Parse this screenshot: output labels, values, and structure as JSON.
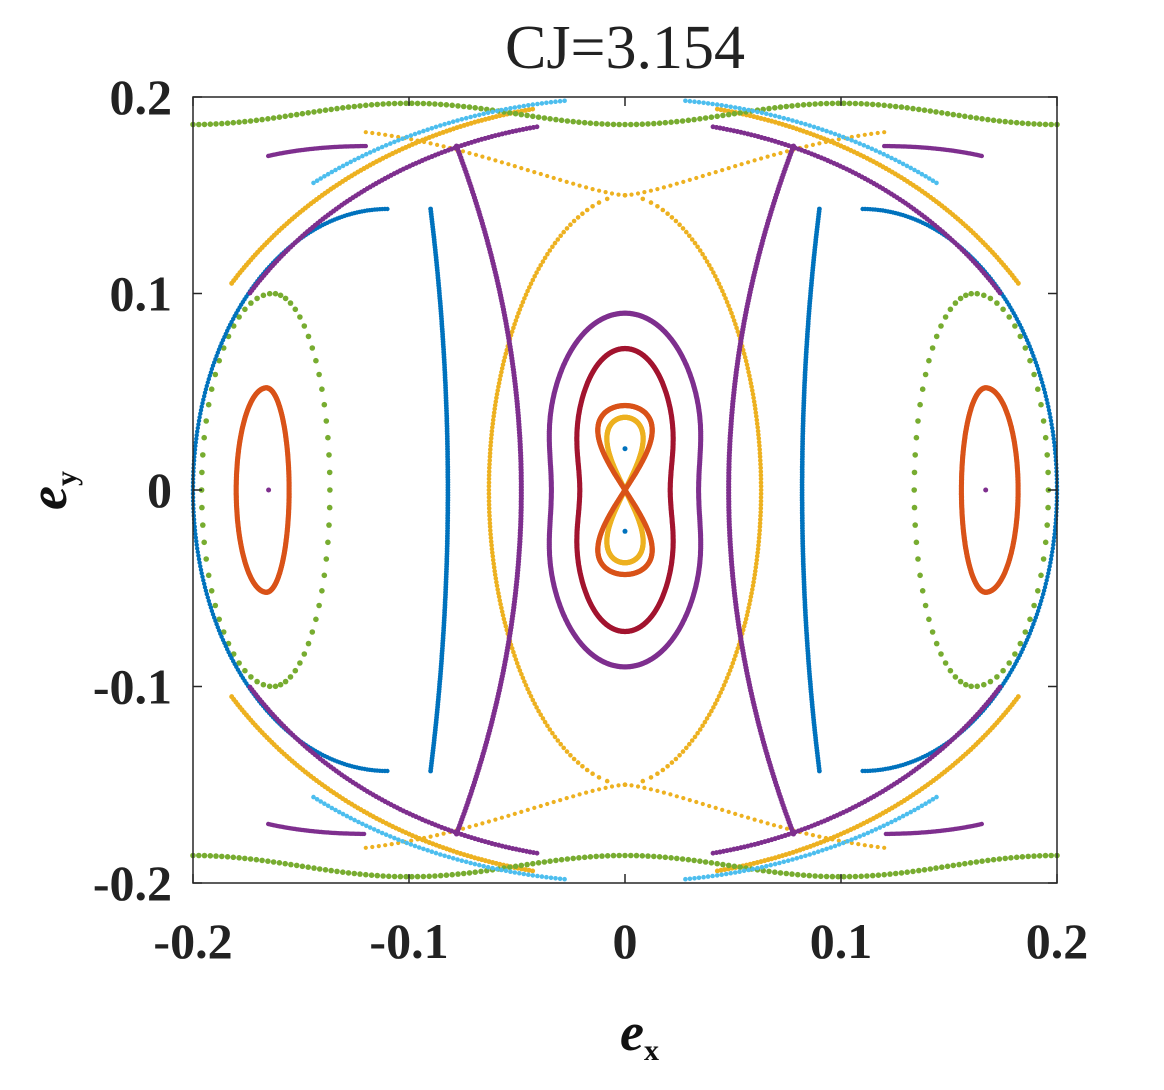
{
  "chart_data": {
    "type": "scatter",
    "title": "CJ=3.154",
    "xlabel": "e",
    "xlabel_sub": "x",
    "ylabel": "e",
    "ylabel_sub": "y",
    "xlim": [
      -0.2,
      0.2
    ],
    "ylim": [
      -0.2,
      0.2
    ],
    "xticks": [
      "-0.2",
      "-0.1",
      "0",
      "0.1",
      "0.2"
    ],
    "yticks": [
      "0.2",
      "0.1",
      "0",
      "-0.1",
      "-0.2"
    ],
    "grid": false,
    "colors": {
      "blue": "#0072BD",
      "orange": "#D95319",
      "yellow": "#EDB120",
      "purple": "#7E2F8E",
      "green": "#77AC30",
      "cyan": "#4DBEEE",
      "red": "#A2142F"
    },
    "series": [
      {
        "color": "#0072BD",
        "kind": "fixed_points",
        "points": [
          [
            0.0,
            0.021
          ],
          [
            0.0,
            -0.021
          ]
        ]
      },
      {
        "color": "#7E2F8E",
        "kind": "fixed_points",
        "points": [
          [
            -0.165,
            0.0
          ],
          [
            0.167,
            0.0
          ]
        ]
      },
      {
        "color": "#EDB120",
        "kind": "figure8",
        "x_amp": 0.006,
        "y_amp": 0.037
      },
      {
        "color": "#D95319",
        "kind": "figure8",
        "x_amp": 0.009,
        "y_amp": 0.043
      },
      {
        "color": "#A2142F",
        "kind": "peanut_loop",
        "x_amp": 0.028,
        "y_amp": 0.072,
        "waist": 0.3
      },
      {
        "color": "#7E2F8E",
        "kind": "peanut_loop",
        "x_amp": 0.042,
        "y_amp": 0.09,
        "waist": 0.22
      },
      {
        "color": "#EDB120",
        "kind": "separatrix",
        "x_max": 0.063,
        "y_cusp": 0.15
      },
      {
        "color": "#D95319",
        "kind": "island",
        "side": "left",
        "center": [
          -0.165,
          0.0
        ],
        "x_range": [
          -0.18,
          -0.152
        ],
        "y_amp": 0.052
      },
      {
        "color": "#D95319",
        "kind": "island",
        "side": "right",
        "center": [
          0.167,
          0.0
        ],
        "x_range": [
          0.152,
          0.182
        ],
        "y_amp": 0.052
      },
      {
        "color": "#77AC30",
        "kind": "island_dotted",
        "side": "left",
        "x_range": [
          -0.196,
          -0.13
        ],
        "y_amp": 0.1
      },
      {
        "color": "#77AC30",
        "kind": "island_dotted",
        "side": "right",
        "x_range": [
          0.127,
          0.196
        ],
        "y_amp": 0.1
      },
      {
        "color": "#7E2F8E",
        "kind": "banana",
        "side": "left",
        "x_inner": -0.048,
        "x_outer": -0.2,
        "y_top": 0.175
      },
      {
        "color": "#7E2F8E",
        "kind": "banana",
        "side": "right",
        "x_inner": 0.048,
        "x_outer": 0.2,
        "y_top": 0.175
      },
      {
        "color": "#0072BD",
        "kind": "arc",
        "side": "left",
        "x_inner": -0.09,
        "y_top": 0.143
      },
      {
        "color": "#0072BD",
        "kind": "arc",
        "side": "right",
        "x_inner": 0.09,
        "y_top": 0.143
      },
      {
        "color": "#7E2F8E",
        "kind": "outer_arc",
        "r": 0.205
      },
      {
        "color": "#EDB120",
        "kind": "outer_arc",
        "r": 0.215
      },
      {
        "color": "#77AC30",
        "kind": "outer_band",
        "y_top": 0.198,
        "y_mid": 0.186
      },
      {
        "color": "#4DBEEE",
        "kind": "corner_arc",
        "r": 0.232
      }
    ]
  }
}
